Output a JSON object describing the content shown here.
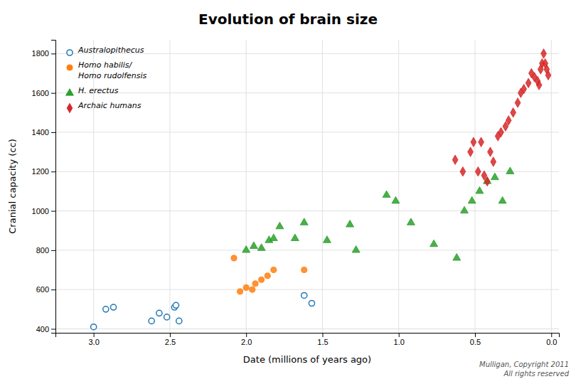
{
  "chart_data": {
    "type": "scatter",
    "title": "Evolution of brain size",
    "x_label": "Date (millions of years ago)",
    "y_label": "Cranial capacity (cc)",
    "annotations": [
      "Mulligan, Copyright 2011\nAll rights reserved"
    ],
    "xlim": [
      3.25,
      -0.05
    ],
    "ylim": [
      380,
      1870
    ],
    "xticks": [
      {
        "value": 3.0,
        "label": "3.0"
      },
      2.5,
      {
        "value": 2.0,
        "label": "2.0"
      },
      1.5,
      {
        "value": 1.0,
        "label": "1.0"
      },
      0.5,
      {
        "value": 0.0,
        "label": "0.0"
      }
    ],
    "yticks": [
      400,
      600,
      800,
      1000,
      1200,
      1400,
      1600,
      1800
    ],
    "grid": true,
    "legend": "upper left",
    "series": [
      {
        "name": "Australopithecus",
        "marker": "open-circle",
        "x": [
          3.0,
          2.92,
          2.87,
          2.62,
          2.57,
          2.52,
          2.47,
          2.46,
          2.44,
          1.62,
          1.57
        ],
        "values": [
          410,
          500,
          510,
          440,
          480,
          460,
          510,
          520,
          440,
          570,
          530
        ]
      },
      {
        "name": "Homo habilis/\nHomo rudolfensis",
        "marker": "circle",
        "x": [
          2.08,
          2.04,
          2.0,
          1.96,
          1.94,
          1.9,
          1.86,
          1.82,
          1.62
        ],
        "values": [
          760,
          590,
          610,
          600,
          630,
          650,
          670,
          700,
          700
        ]
      },
      {
        "name": "H. erectus",
        "marker": "triangle",
        "x": [
          2.0,
          1.95,
          1.9,
          1.85,
          1.82,
          1.78,
          1.68,
          1.62,
          1.47,
          1.32,
          1.28,
          1.08,
          1.02,
          0.92,
          0.77,
          0.62,
          0.57,
          0.52,
          0.47,
          0.42,
          0.37,
          0.32,
          0.27
        ],
        "values": [
          800,
          820,
          810,
          850,
          860,
          920,
          860,
          940,
          850,
          930,
          800,
          1080,
          1050,
          940,
          830,
          760,
          1000,
          1050,
          1100,
          1150,
          1170,
          1050,
          1200
        ]
      },
      {
        "name": "Archaic humans",
        "marker": "diamond",
        "x": [
          0.63,
          0.58,
          0.53,
          0.51,
          0.48,
          0.46,
          0.44,
          0.42,
          0.4,
          0.38,
          0.35,
          0.33,
          0.3,
          0.28,
          0.25,
          0.22,
          0.2,
          0.18,
          0.15,
          0.13,
          0.11,
          0.09,
          0.08,
          0.07,
          0.06,
          0.05,
          0.04,
          0.03,
          0.02
        ],
        "values": [
          1260,
          1200,
          1300,
          1350,
          1200,
          1350,
          1180,
          1150,
          1300,
          1250,
          1380,
          1400,
          1430,
          1460,
          1500,
          1550,
          1600,
          1620,
          1650,
          1700,
          1680,
          1660,
          1640,
          1720,
          1750,
          1800,
          1750,
          1720,
          1690
        ]
      }
    ]
  }
}
